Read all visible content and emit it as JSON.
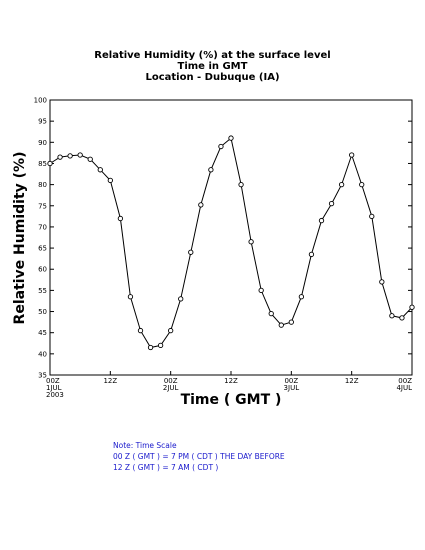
{
  "chart_data": {
    "type": "line",
    "title": "Relative Humidity (%) at the surface level",
    "subtitle1": "Time in GMT",
    "subtitle2": "Location - Dubuque (IA)",
    "ylabel": "Relative Humidity (%)",
    "xlabel": "Time ( GMT )",
    "ylim": [
      35,
      100
    ],
    "xlim": [
      0,
      72
    ],
    "yticks": [
      35,
      40,
      45,
      50,
      55,
      60,
      65,
      70,
      75,
      80,
      85,
      90,
      95,
      100
    ],
    "xticks": [
      {
        "x": 0,
        "label": "00Z",
        "label2": "1JUL",
        "label3": "2003"
      },
      {
        "x": 12,
        "label": "12Z",
        "label2": "",
        "label3": ""
      },
      {
        "x": 24,
        "label": "00Z",
        "label2": "2JUL",
        "label3": ""
      },
      {
        "x": 36,
        "label": "12Z",
        "label2": "",
        "label3": ""
      },
      {
        "x": 48,
        "label": "00Z",
        "label2": "3JUL",
        "label3": ""
      },
      {
        "x": 60,
        "label": "12Z",
        "label2": "",
        "label3": ""
      },
      {
        "x": 72,
        "label": "00Z",
        "label2": "4JUL",
        "label3": ""
      }
    ],
    "series": [
      {
        "x": [
          0,
          2,
          4,
          6,
          8,
          10,
          12,
          14,
          16,
          18,
          20,
          22,
          24,
          26,
          28,
          30,
          32,
          34,
          36,
          38,
          40,
          42,
          44,
          46,
          48,
          50,
          52,
          54,
          56,
          58,
          60,
          62,
          64,
          66,
          68,
          70,
          72
        ],
        "values": [
          85,
          86.5,
          86.8,
          87,
          86,
          83.5,
          81,
          72,
          53.5,
          45.5,
          41.5,
          42,
          45.5,
          53,
          64,
          75.2,
          83.5,
          89,
          91,
          80,
          66.5,
          55,
          49.5,
          46.8,
          47.5,
          53.5,
          63.5,
          71.5,
          75.5,
          80,
          87,
          80,
          72.5,
          57,
          49,
          48.5,
          51
        ]
      }
    ]
  },
  "note": {
    "line1": "Note: Time Scale",
    "line2": "00 Z ( GMT ) = 7 PM ( CDT ) THE DAY BEFORE",
    "line3": "12 Z ( GMT ) = 7 AM ( CDT )"
  }
}
